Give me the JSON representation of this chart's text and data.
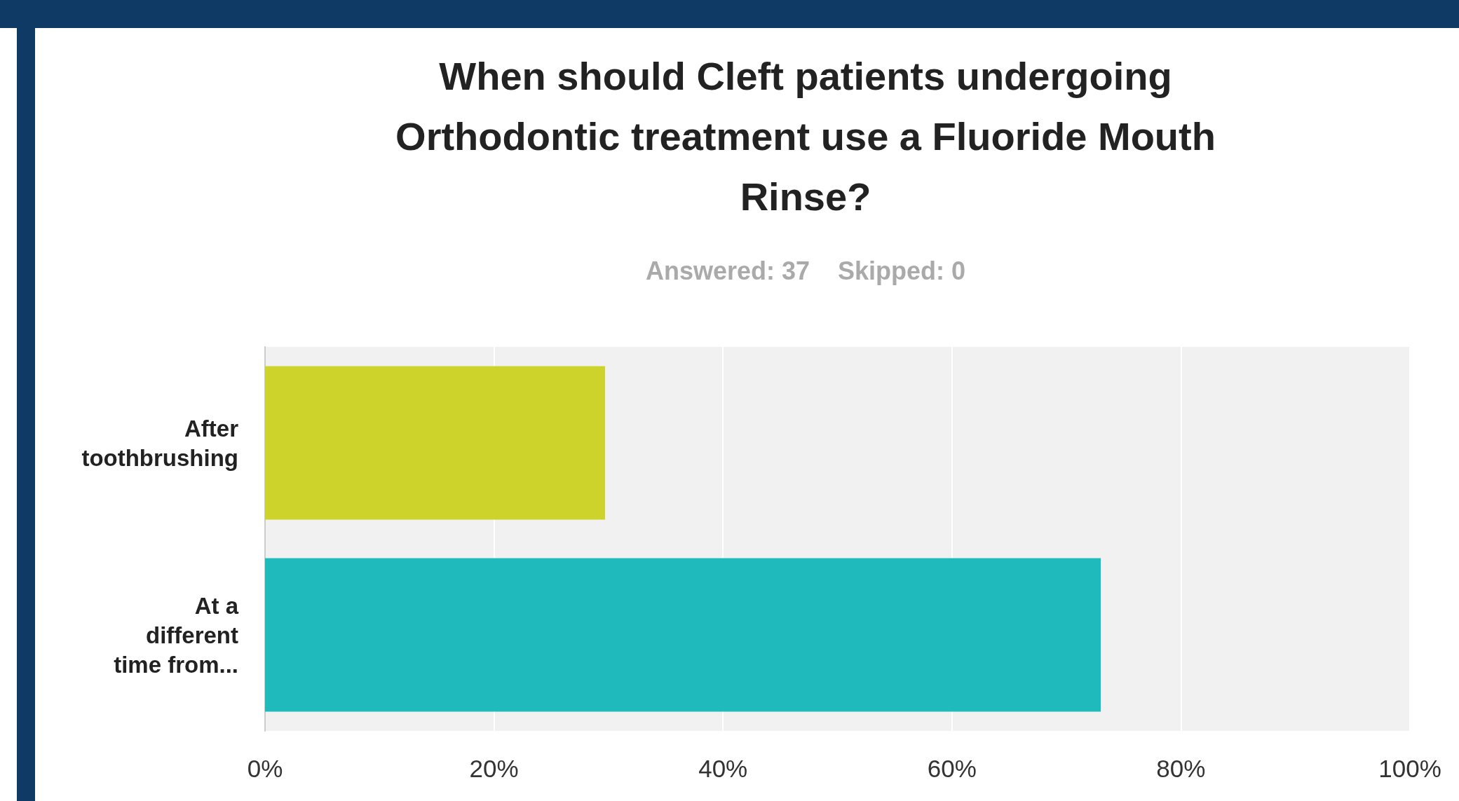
{
  "chart_data": {
    "type": "bar",
    "orientation": "horizontal",
    "title": "When should Cleft patients undergoing\nOrthodontic treatment use a Fluoride Mouth\nRinse?",
    "subtitle": "Answered: 37    Skipped: 0",
    "categories": [
      "After\ntoothbrushing",
      "At a\ndifferent\ntime from..."
    ],
    "values": [
      29.7,
      73
    ],
    "colors": [
      "#cdd32a",
      "#1fbabb"
    ],
    "xlim": [
      0,
      100
    ],
    "xticks": [
      {
        "value": 0,
        "label": "0%"
      },
      {
        "value": 20,
        "label": "20%"
      },
      {
        "value": 40,
        "label": "40%"
      },
      {
        "value": 60,
        "label": "60%"
      },
      {
        "value": 80,
        "label": "80%"
      },
      {
        "value": 100,
        "label": "100%"
      }
    ],
    "grid": "x"
  }
}
